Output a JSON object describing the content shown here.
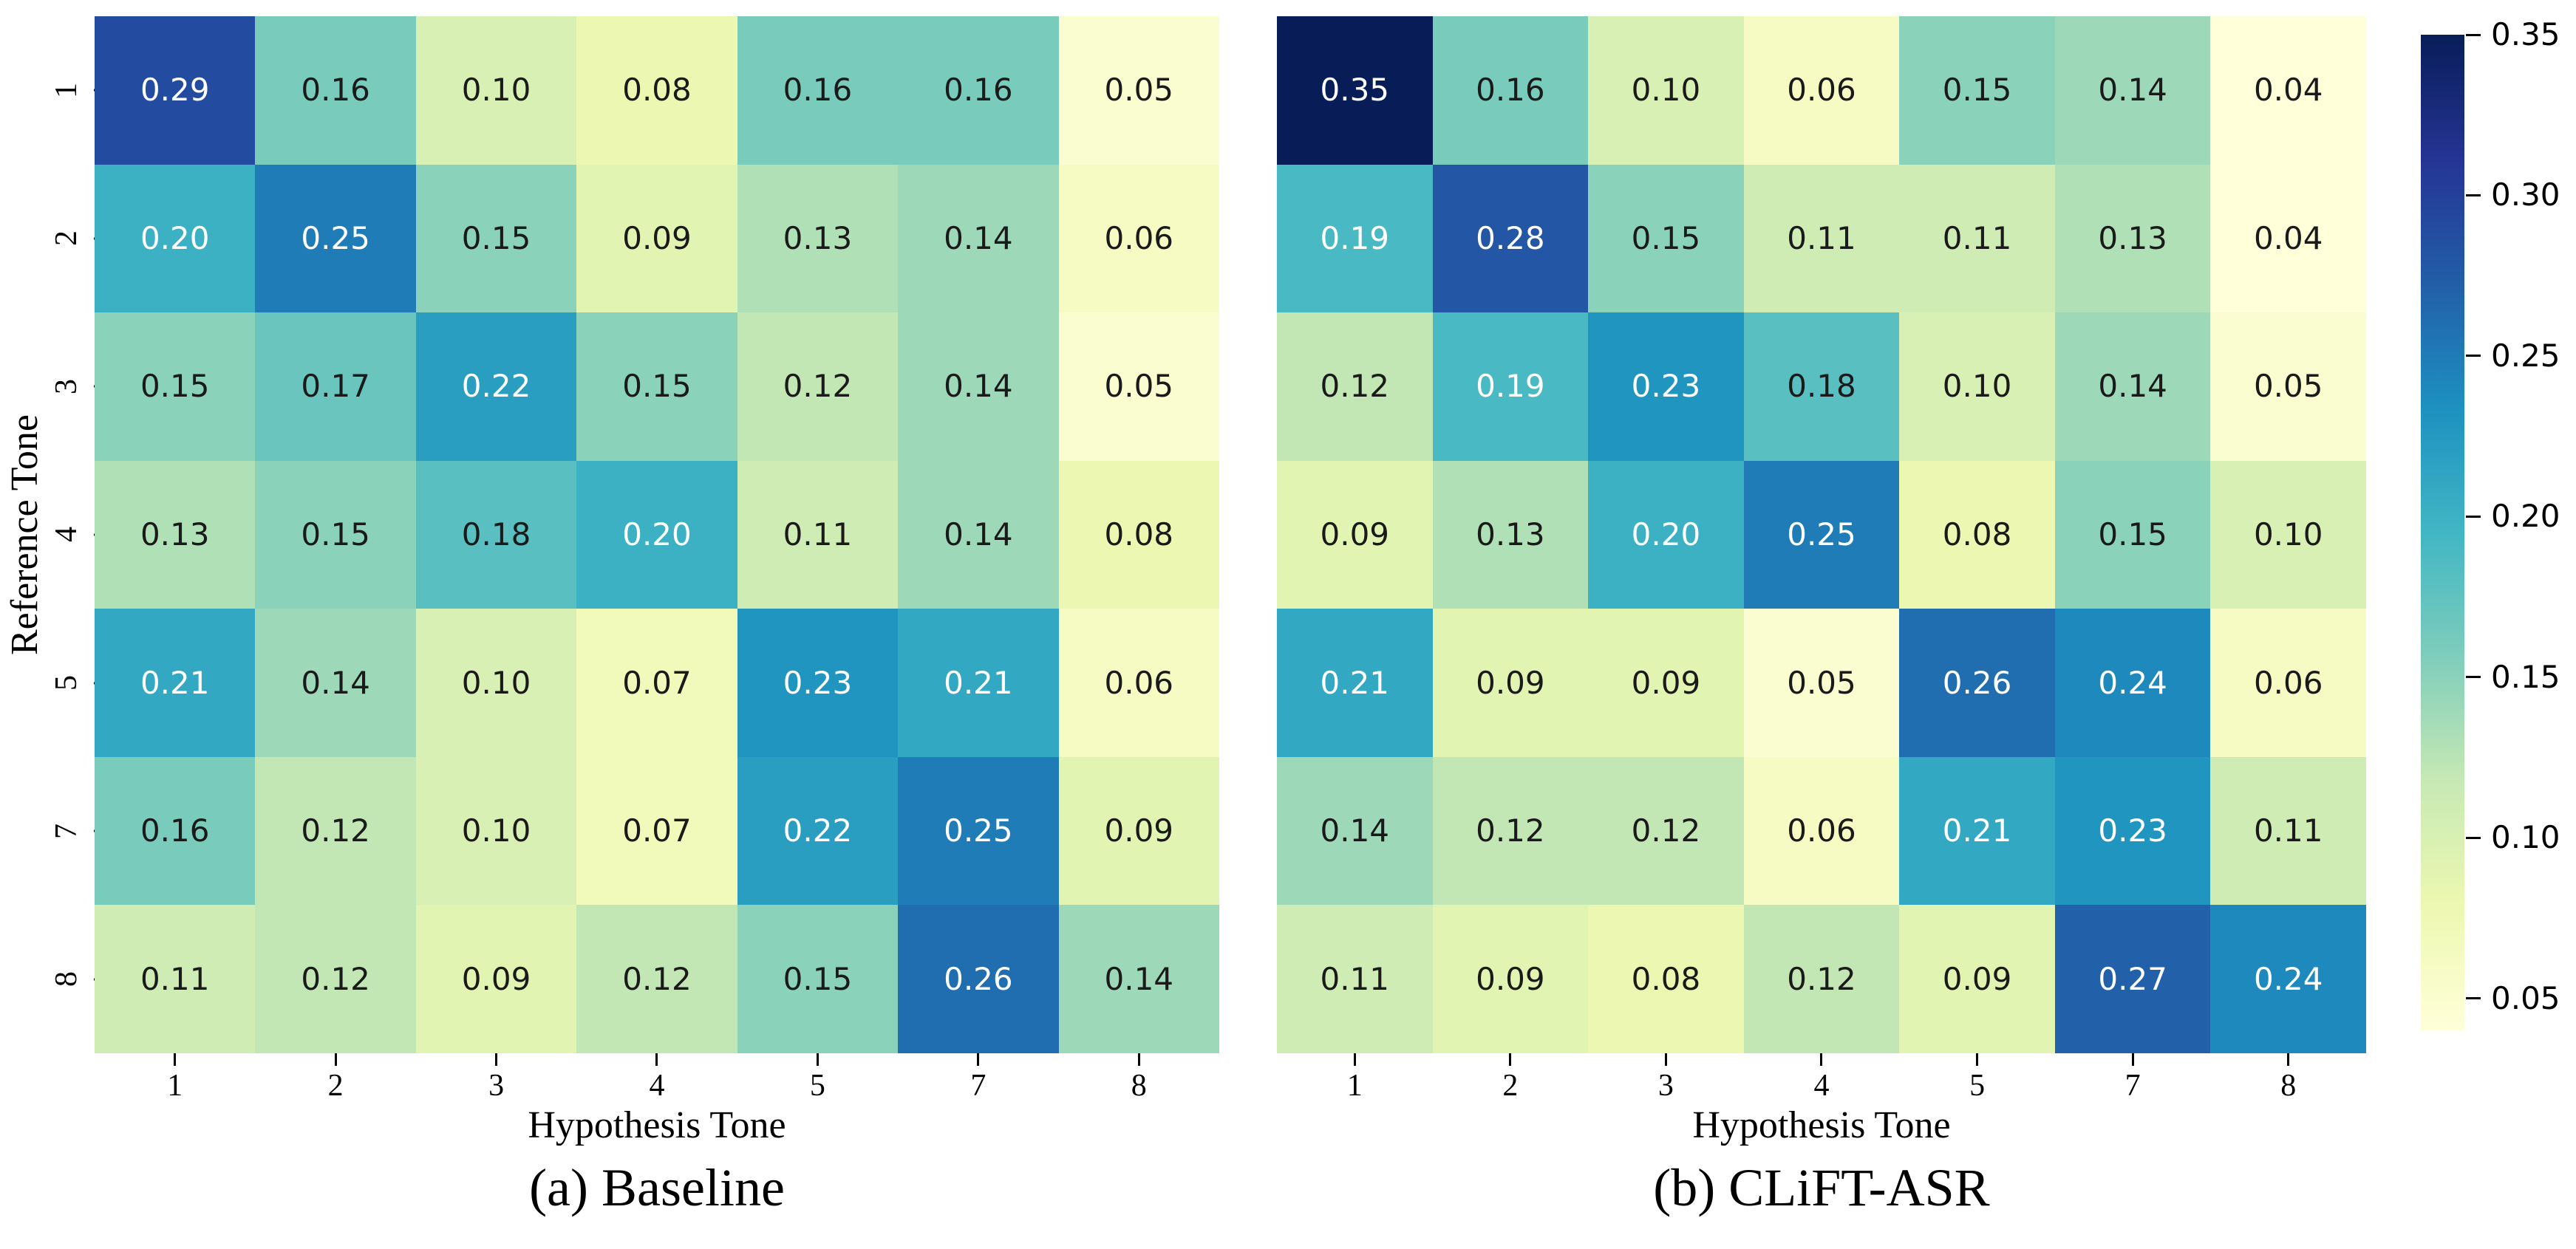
{
  "chart_data": [
    {
      "type": "heatmap",
      "title": "(a) Baseline",
      "xlabel": "Hypothesis Tone",
      "ylabel": "Reference Tone",
      "x_ticklabels": [
        "1",
        "2",
        "3",
        "4",
        "5",
        "7",
        "8"
      ],
      "y_ticklabels": [
        "1",
        "2",
        "3",
        "4",
        "5",
        "7",
        "8"
      ],
      "values": [
        [
          0.29,
          0.16,
          0.1,
          0.08,
          0.16,
          0.16,
          0.05
        ],
        [
          0.2,
          0.25,
          0.15,
          0.09,
          0.13,
          0.14,
          0.06
        ],
        [
          0.15,
          0.17,
          0.22,
          0.15,
          0.12,
          0.14,
          0.05
        ],
        [
          0.13,
          0.15,
          0.18,
          0.2,
          0.11,
          0.14,
          0.08
        ],
        [
          0.21,
          0.14,
          0.1,
          0.07,
          0.23,
          0.21,
          0.06
        ],
        [
          0.16,
          0.12,
          0.1,
          0.07,
          0.22,
          0.25,
          0.09
        ],
        [
          0.11,
          0.12,
          0.09,
          0.12,
          0.15,
          0.26,
          0.14
        ]
      ]
    },
    {
      "type": "heatmap",
      "title": "(b) CLiFT-ASR",
      "xlabel": "Hypothesis Tone",
      "x_ticklabels": [
        "1",
        "2",
        "3",
        "4",
        "5",
        "7",
        "8"
      ],
      "values": [
        [
          0.35,
          0.16,
          0.1,
          0.06,
          0.15,
          0.14,
          0.04
        ],
        [
          0.19,
          0.28,
          0.15,
          0.11,
          0.11,
          0.13,
          0.04
        ],
        [
          0.12,
          0.19,
          0.23,
          0.18,
          0.1,
          0.14,
          0.05
        ],
        [
          0.09,
          0.13,
          0.2,
          0.25,
          0.08,
          0.15,
          0.1
        ],
        [
          0.21,
          0.09,
          0.09,
          0.05,
          0.26,
          0.24,
          0.06
        ],
        [
          0.14,
          0.12,
          0.12,
          0.06,
          0.21,
          0.23,
          0.11
        ],
        [
          0.11,
          0.09,
          0.08,
          0.12,
          0.09,
          0.27,
          0.24
        ]
      ]
    }
  ],
  "colorbar": {
    "colormap": "YlGnBu",
    "colormap_stops": [
      "#ffffd9",
      "#edf8b1",
      "#c7e9b4",
      "#7fcdbb",
      "#41b6c4",
      "#1d91c0",
      "#225ea8",
      "#253494",
      "#081d58"
    ],
    "vmin": 0.04,
    "vmax": 0.35,
    "tick_labels": [
      "0.35",
      "0.30",
      "0.25",
      "0.20",
      "0.15",
      "0.10",
      "0.05"
    ],
    "annotation_text_dark": "#1a1a1a",
    "annotation_text_light": "#ffffff"
  }
}
